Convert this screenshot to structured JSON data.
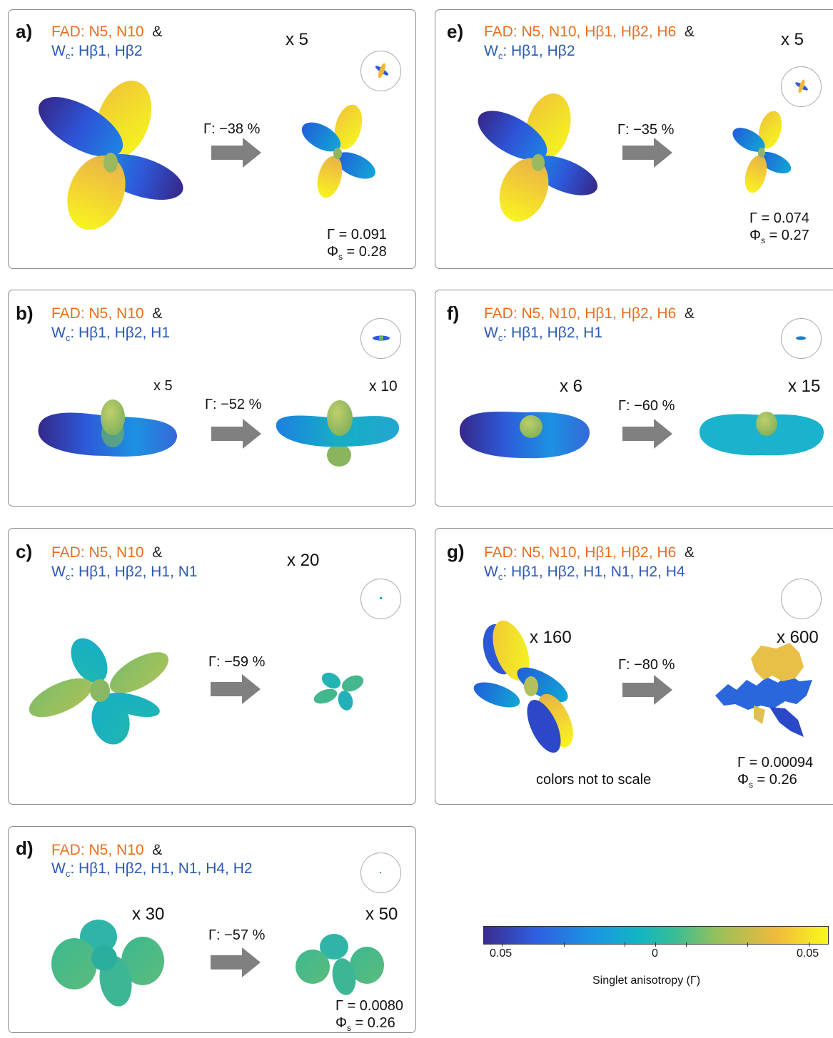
{
  "panels": [
    {
      "label": "a)",
      "fad": "FAD: N5, N10",
      "amp": "&",
      "wc_prefix": "W",
      "wc_sub": "c",
      "wc_rest": ": Hβ1, Hβ2",
      "gamma_change": "Γ: −38 %",
      "mult": "x 5",
      "gamma_value": "Γ = 0.091",
      "phi_prefix": "Φ",
      "phi_sub": "s",
      "phi_rest": " = 0.28"
    },
    {
      "label": "b)",
      "fad": "FAD: N5, N10",
      "amp": "&",
      "wc_prefix": "W",
      "wc_sub": "c",
      "wc_rest": ": Hβ1, Hβ2, H1",
      "gamma_change": "Γ: −52 %",
      "mult_left": "x 5",
      "mult_right": "x 10"
    },
    {
      "label": "c)",
      "fad": "FAD: N5, N10",
      "amp": "&",
      "wc_prefix": "W",
      "wc_sub": "c",
      "wc_rest": ": Hβ1, Hβ2, H1, N1",
      "gamma_change": "Γ: −59 %",
      "mult": "x 20"
    },
    {
      "label": "d)",
      "fad": "FAD: N5, N10",
      "amp": "&",
      "wc_prefix": "W",
      "wc_sub": "c",
      "wc_rest": ": Hβ1, Hβ2, H1, N1, H4, H2",
      "gamma_change": "Γ: −57 %",
      "mult_left": "x 30",
      "mult_right": "x 50",
      "gamma_value": "Γ = 0.0080",
      "phi_prefix": "Φ",
      "phi_sub": "s",
      "phi_rest": " = 0.26"
    },
    {
      "label": "e)",
      "fad": "FAD: N5, N10, Hβ1, Hβ2, H6",
      "amp": "&",
      "wc_prefix": "W",
      "wc_sub": "c",
      "wc_rest": ": Hβ1, Hβ2",
      "gamma_change": "Γ: −35 %",
      "mult": "x 5",
      "gamma_value": "Γ = 0.074",
      "phi_prefix": "Φ",
      "phi_sub": "s",
      "phi_rest": " = 0.27"
    },
    {
      "label": "f)",
      "fad": "FAD: N5, N10, Hβ1, Hβ2, H6",
      "amp": "&",
      "wc_prefix": "W",
      "wc_sub": "c",
      "wc_rest": ": Hβ1, Hβ2, H1",
      "gamma_change": "Γ: −60 %",
      "mult_left": "x 6",
      "mult_right": "x 15"
    },
    {
      "label": "g)",
      "fad": "FAD: N5, N10, Hβ1, Hβ2, H6",
      "amp": "&",
      "wc_prefix": "W",
      "wc_sub": "c",
      "wc_rest": ": Hβ1, Hβ2, H1, N1, H2, H4",
      "gamma_change": "Γ: −80 %",
      "mult_left": "x 160",
      "mult_right": "x 600",
      "note": "colors not to scale",
      "gamma_value": "Γ = 0.00094",
      "phi_prefix": "Φ",
      "phi_sub": "s",
      "phi_rest": " = 0.26"
    }
  ],
  "colorbar": {
    "left_label": "0.05",
    "mid_label": "0",
    "right_label": "0.05",
    "title": "Singlet anisotropy (Γ)",
    "colors": [
      "#3a2c8e",
      "#2f5ee2",
      "#1a96e2",
      "#12b5c3",
      "#35bd97",
      "#98c05a",
      "#f0ba3c",
      "#f9f91c"
    ]
  },
  "colors": {
    "fad": "#ec6d1c",
    "wc": "#2a59b7",
    "arrow": "#808080",
    "border": "#8c8c8c"
  }
}
